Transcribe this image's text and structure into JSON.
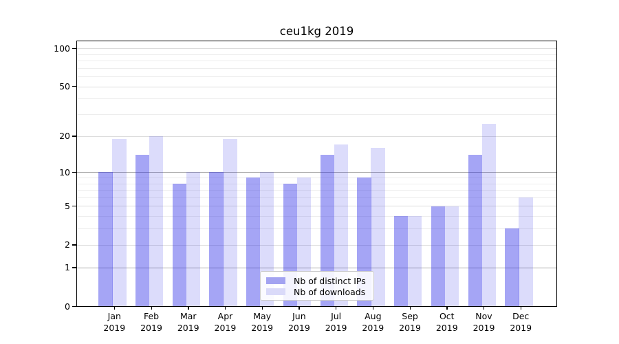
{
  "chart_data": {
    "type": "bar",
    "title": "ceu1kg 2019",
    "categories": [
      "Jan",
      "Feb",
      "Mar",
      "Apr",
      "May",
      "Jun",
      "Jul",
      "Aug",
      "Sep",
      "Oct",
      "Nov",
      "Dec"
    ],
    "x_year_label": "2019",
    "series": [
      {
        "name": "Nb of distinct IPs",
        "fill": "#2828e66b",
        "legend_color": "#a3a3f1",
        "values": [
          10,
          14,
          8,
          10,
          9,
          8,
          14,
          9,
          4,
          5,
          14,
          3
        ]
      },
      {
        "name": "Nb of downloads",
        "fill": "#2828e62a",
        "legend_color": "#dadaf9",
        "values": [
          19,
          20,
          10,
          19,
          10,
          9,
          17,
          16,
          4,
          5,
          25,
          6
        ]
      }
    ],
    "yscale": "log10(1+x)",
    "ylim": [
      0,
      114
    ],
    "y_ticks": [
      0,
      1,
      2,
      5,
      10,
      20,
      50,
      100
    ],
    "y_dark_gridlines": [
      1,
      10
    ],
    "y_minor_gridlines": [
      3,
      4,
      6,
      7,
      8,
      9,
      30,
      40,
      60,
      70,
      80,
      90
    ],
    "grid": "on",
    "legend_position": "lower center"
  }
}
